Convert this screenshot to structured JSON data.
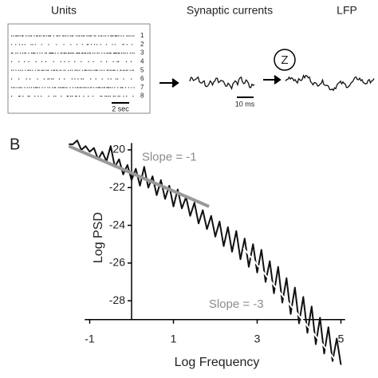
{
  "panel_a": {
    "labels": {
      "units": "Units",
      "synaptic": "Synaptic currents",
      "lfp": "LFP"
    },
    "unit_numbers": [
      "1",
      "2",
      "3",
      "4",
      "5",
      "6",
      "7",
      "8"
    ],
    "scale_units": "2 sec",
    "scale_synaptic": "10 ms",
    "transform": "Z"
  },
  "panel_b_label": "B",
  "chart_data": {
    "type": "line",
    "xlabel": "Log Frequency",
    "ylabel": "Log PSD",
    "xlim": [
      -1.5,
      5.1
    ],
    "ylim": [
      -31.6,
      -19.3
    ],
    "xticks": [
      -1,
      1,
      3,
      5
    ],
    "yticks": [
      -20,
      -22,
      -24,
      -26,
      -28
    ],
    "xaxis_position": -29,
    "yaxis_position": 0,
    "annotations": [
      {
        "text": "Slope = -1",
        "x": 0.9,
        "y": -20.4,
        "color": "#8c8c8c"
      },
      {
        "text": "Slope = -3",
        "x": 2.5,
        "y": -28.2,
        "color": "#8c8c8c"
      }
    ],
    "series": [
      {
        "color": "#111111",
        "width": 2,
        "x": [
          -1.5,
          -1.4,
          -1.3,
          -1.2,
          -1.1,
          -1.0,
          -0.9,
          -0.8,
          -0.7,
          -0.6,
          -0.5,
          -0.4,
          -0.3,
          -0.2,
          -0.1,
          0.0,
          0.1,
          0.2,
          0.3,
          0.4,
          0.5,
          0.6,
          0.7,
          0.8,
          0.9,
          1.0,
          1.1,
          1.2,
          1.3,
          1.4,
          1.5,
          1.6,
          1.7,
          1.8,
          1.9,
          2.0,
          2.1,
          2.2,
          2.3,
          2.4,
          2.5,
          2.6,
          2.7,
          2.8,
          2.9,
          3.0,
          3.1,
          3.2,
          3.3,
          3.4,
          3.5,
          3.6,
          3.7,
          3.8,
          3.9,
          4.0,
          4.1,
          4.2,
          4.3,
          4.4,
          4.5,
          4.6,
          4.7,
          4.8,
          4.9,
          5.0
        ],
        "values": [
          -19.7,
          -19.7,
          -19.5,
          -20.0,
          -19.8,
          -20.1,
          -19.9,
          -20.5,
          -20.1,
          -20.6,
          -19.8,
          -20.9,
          -20.5,
          -21.3,
          -20.8,
          -21.6,
          -21.0,
          -21.9,
          -20.9,
          -22.0,
          -21.4,
          -22.4,
          -21.6,
          -22.6,
          -21.9,
          -23.0,
          -22.1,
          -23.1,
          -22.5,
          -23.5,
          -22.8,
          -23.9,
          -23.2,
          -24.2,
          -23.5,
          -24.6,
          -23.8,
          -25.1,
          -24.1,
          -25.4,
          -24.3,
          -25.8,
          -24.7,
          -26.2,
          -25.0,
          -26.5,
          -25.3,
          -27.0,
          -25.9,
          -27.6,
          -26.2,
          -28.1,
          -26.8,
          -28.7,
          -27.3,
          -29.2,
          -27.8,
          -29.7,
          -28.3,
          -30.3,
          -28.9,
          -30.8,
          -29.4,
          -31.2,
          -30.0,
          -31.4
        ]
      },
      {
        "color": "#999999",
        "width": 4,
        "x": [
          -1.5,
          1.85
        ],
        "values": [
          -19.8,
          -23.0
        ]
      },
      {
        "color": "#ffffff",
        "width": 2,
        "x": [
          2.67,
          5.0
        ],
        "values": [
          -25.2,
          -31.5
        ]
      }
    ]
  }
}
